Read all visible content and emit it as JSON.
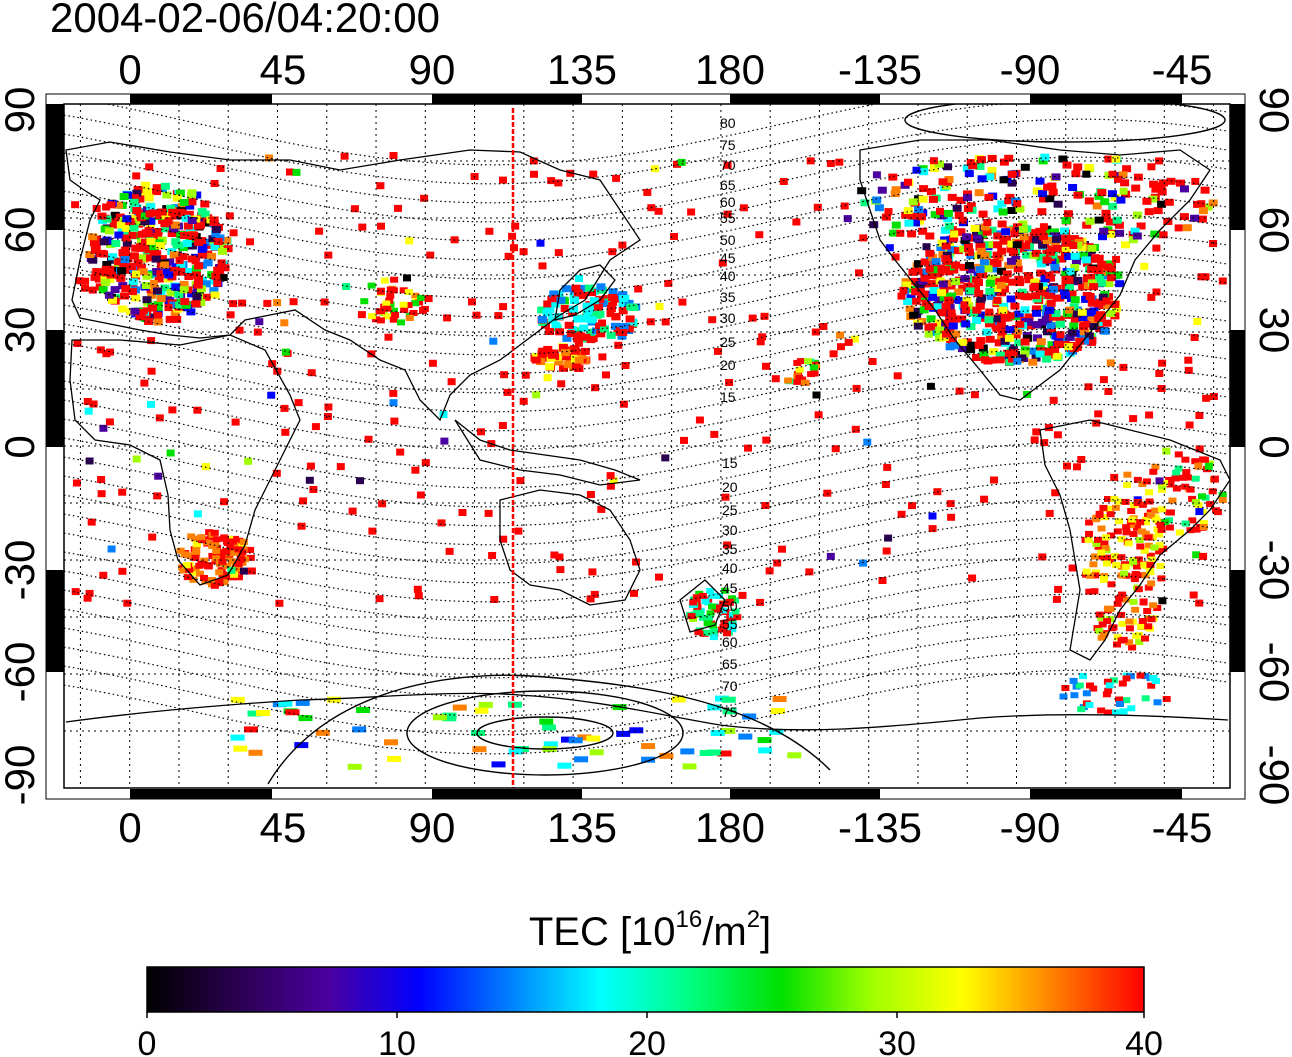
{
  "title": "2004-02-06/04:20:00",
  "map": {
    "lon_ticks": [
      "0",
      "45",
      "90",
      "135",
      "180",
      "-135",
      "-90",
      "-45"
    ],
    "lat_ticks": [
      "90",
      "60",
      "30",
      "0",
      "-30",
      "-60",
      "-90"
    ],
    "contour_labels_north": [
      "80",
      "75",
      "70",
      "65",
      "60",
      "55",
      "50",
      "45",
      "40",
      "35",
      "30",
      "25",
      "20",
      "15"
    ],
    "contour_labels_south": [
      "15",
      "20",
      "25",
      "30",
      "35",
      "40",
      "45",
      "50",
      "55",
      "60",
      "65",
      "70",
      "75"
    ],
    "local_time_line_lon": 116.7,
    "lon_range": [
      -20,
      335
    ],
    "lat_range": [
      -90,
      90
    ]
  },
  "colorbar": {
    "label_prefix": "TEC  [10",
    "label_exp": "16",
    "label_mid": "/m",
    "label_exp2": "2",
    "label_suffix": "]",
    "ticks": [
      "0",
      "10",
      "20",
      "30",
      "40"
    ],
    "range": [
      0,
      40
    ],
    "colors": [
      "#000000",
      "#2a0050",
      "#4a00a0",
      "#0000ff",
      "#0080ff",
      "#00ffff",
      "#00ff80",
      "#00e000",
      "#a0ff00",
      "#ffff00",
      "#ff8000",
      "#ff0000"
    ]
  }
}
